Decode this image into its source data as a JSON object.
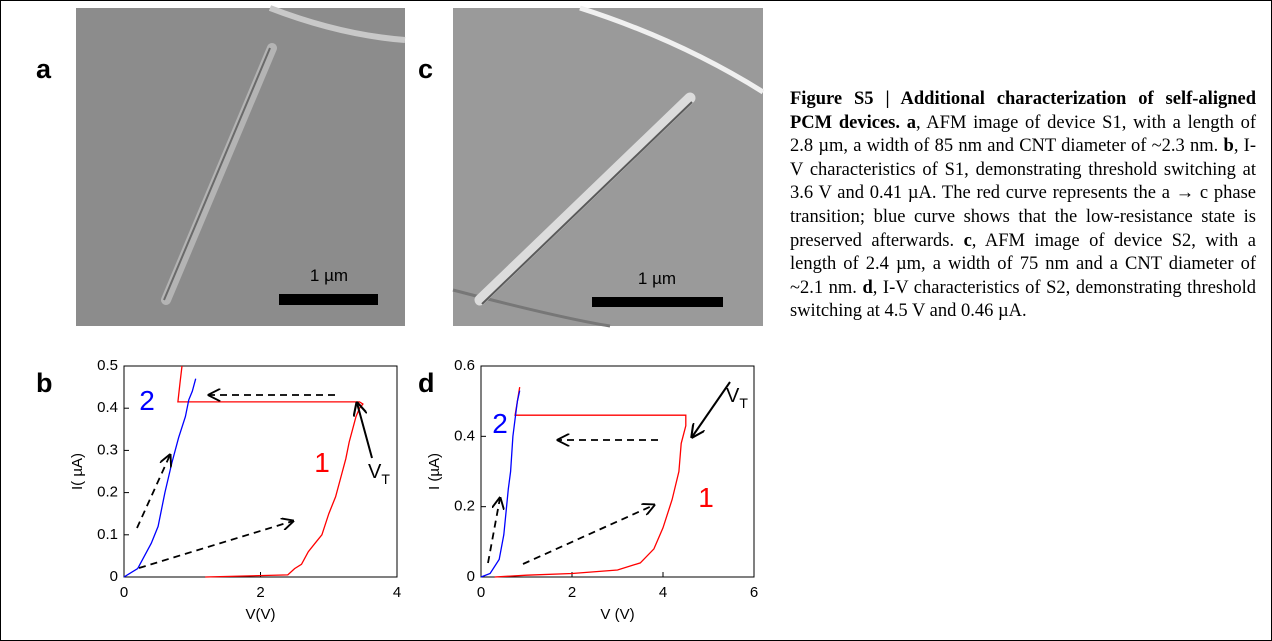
{
  "panels": {
    "a": {
      "label": "a",
      "scale_bar": "1 µm"
    },
    "b": {
      "label": "b"
    },
    "c": {
      "label": "c",
      "scale_bar": "1 µm"
    },
    "d": {
      "label": "d"
    }
  },
  "chart_data": [
    {
      "type": "line",
      "xlabel": "V(V)",
      "ylabel": "I( µA)",
      "xlim": [
        0,
        4
      ],
      "xticks": [
        0,
        2,
        4
      ],
      "ylim": [
        0,
        0.5
      ],
      "yticks": [
        0,
        0.1,
        0.2,
        0.3,
        0.4,
        0.5
      ],
      "series": [
        {
          "name": "1",
          "color": "#ff0000",
          "x": [
            1.19,
            2.4,
            2.5,
            2.6,
            2.7,
            2.8,
            2.9,
            3.0,
            3.1,
            3.2,
            3.25,
            3.3,
            3.35,
            3.4,
            3.45,
            3.5,
            3.45,
            0.79,
            0.82,
            0.85
          ],
          "values": [
            0,
            0.005,
            0.02,
            0.03,
            0.06,
            0.08,
            0.1,
            0.15,
            0.19,
            0.25,
            0.28,
            0.32,
            0.35,
            0.38,
            0.4,
            0.41,
            0.415,
            0.415,
            0.46,
            0.5
          ]
        },
        {
          "name": "2",
          "color": "#0000ff",
          "x": [
            0,
            0.2,
            0.4,
            0.5,
            0.6,
            0.7,
            0.8,
            0.9,
            0.95,
            1.0,
            1.05
          ],
          "values": [
            0,
            0.02,
            0.08,
            0.12,
            0.2,
            0.27,
            0.33,
            0.38,
            0.42,
            0.44,
            0.47
          ]
        }
      ],
      "annotations": [
        {
          "text": "V",
          "subscript": "T"
        }
      ]
    },
    {
      "type": "line",
      "xlabel": "V (V)",
      "ylabel": "I (µA)",
      "xlim": [
        0,
        6
      ],
      "xticks": [
        0,
        2,
        4,
        6
      ],
      "ylim": [
        0,
        0.6
      ],
      "yticks": [
        0,
        0.2,
        0.4,
        0.6
      ],
      "series": [
        {
          "name": "1",
          "color": "#ff0000",
          "x": [
            0.3,
            1,
            2,
            3,
            3.5,
            3.8,
            4.0,
            4.2,
            4.35,
            4.4,
            4.5,
            4.5,
            0.75,
            0.8,
            0.85
          ],
          "values": [
            0,
            0.005,
            0.01,
            0.02,
            0.04,
            0.08,
            0.14,
            0.22,
            0.3,
            0.38,
            0.43,
            0.46,
            0.46,
            0.5,
            0.54
          ]
        },
        {
          "name": "2",
          "color": "#0000ff",
          "x": [
            0,
            0.2,
            0.4,
            0.5,
            0.6,
            0.65,
            0.7,
            0.75,
            0.8,
            0.85
          ],
          "values": [
            0,
            0.01,
            0.05,
            0.12,
            0.25,
            0.3,
            0.4,
            0.45,
            0.5,
            0.53
          ]
        }
      ],
      "annotations": [
        {
          "text": "V",
          "subscript": "T"
        }
      ]
    }
  ],
  "caption": {
    "runs": [
      {
        "text": "Figure S5 | Additional characterization of self-aligned PCM devices. a",
        "bold": true
      },
      {
        "text": ", AFM image of device S1, with a length of 2.8 µm, a width of 85 nm and CNT diameter of ~2.3 nm. ",
        "bold": false
      },
      {
        "text": "b",
        "bold": true
      },
      {
        "text": ", I-V characteristics of S1, demonstrating threshold switching at 3.6 V and 0.41 µA. The red curve represents the a → c phase transition; blue curve shows that the low-resistance state is preserved afterwards. ",
        "bold": false
      },
      {
        "text": "c",
        "bold": true
      },
      {
        "text": ", AFM image of device S2, with a length of 2.4 µm, a width of 75 nm and a CNT diameter of ~2.1 nm. ",
        "bold": false
      },
      {
        "text": "d",
        "bold": true
      },
      {
        "text": ", I-V characteristics of S2, demonstrating threshold switching at 4.5 V and 0.46 µA.",
        "bold": false
      }
    ]
  }
}
